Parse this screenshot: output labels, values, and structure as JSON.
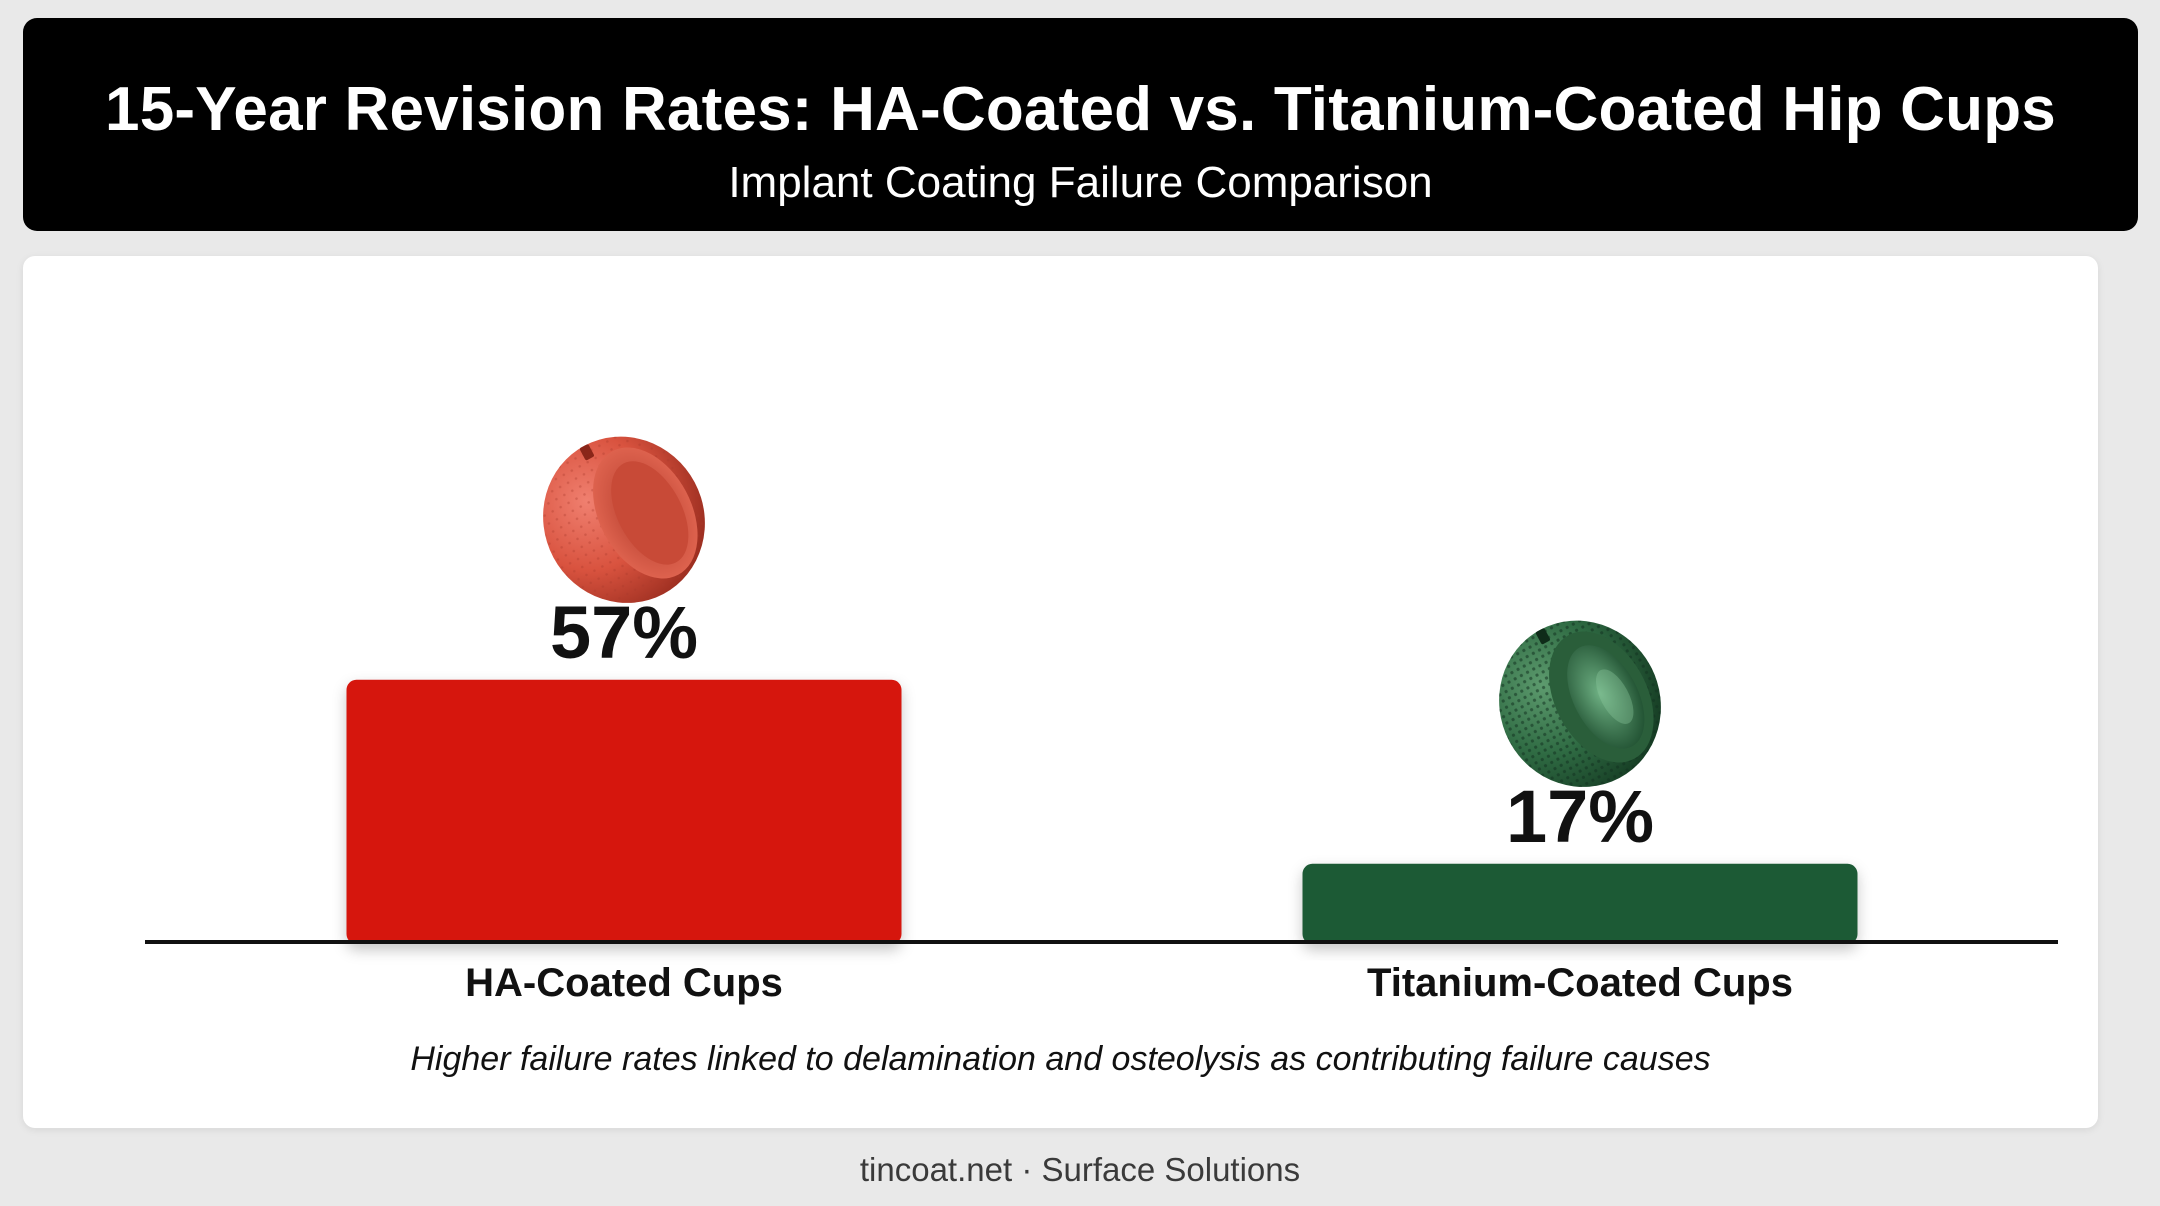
{
  "header": {
    "title": "15-Year Revision Rates: HA-Coated vs. Titanium-Coated Hip Cups",
    "subtitle": "Implant Coating Failure Comparison"
  },
  "chart_data": {
    "type": "bar",
    "categories": [
      "HA-Coated Cups",
      "Titanium-Coated Cups"
    ],
    "values": [
      57,
      17
    ],
    "data_labels": [
      "57%",
      "17%"
    ],
    "title": "15-Year Revision Rates: HA-Coated vs. Titanium-Coated Hip Cups",
    "subtitle": "Implant Coating Failure Comparison",
    "xlabel": "",
    "ylabel": "",
    "ylim": [
      0,
      100
    ],
    "grid": false,
    "bar_colors": [
      "#d61811",
      "#1c5a35"
    ],
    "icons": [
      "ha-coated-hip-cup-icon",
      "titanium-coated-hip-cup-icon"
    ]
  },
  "footnote": "Higher failure rates linked to delamination and osteolysis as contributing failure causes",
  "footer": "tincoat.net · Surface Solutions"
}
